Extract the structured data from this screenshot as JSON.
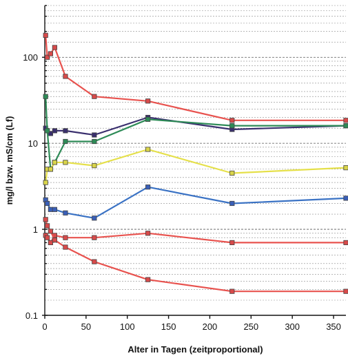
{
  "chart_data": {
    "type": "line",
    "xlabel": "Alter in Tagen (zeitproportional)",
    "ylabel": "mg/l bzw. mS/cm (Lf)",
    "xlim": [
      0,
      365
    ],
    "ylim": [
      0.1,
      400
    ],
    "yscale": "log",
    "grid": "horizontal, dashed",
    "x_ticks": [
      0,
      50,
      100,
      150,
      200,
      250,
      300,
      350
    ],
    "y_ticks": [
      0.1,
      1,
      10,
      100
    ],
    "y_tick_labels": [
      "0.1",
      "1",
      "10",
      "100"
    ],
    "series": [
      {
        "color": "#e8524e",
        "marker_color": "#d84a4a",
        "x": [
          1,
          3,
          7,
          12,
          25,
          60,
          125,
          227,
          365
        ],
        "y": [
          180,
          100,
          110,
          130,
          60,
          35,
          31,
          18.5,
          18.5
        ]
      },
      {
        "color": "#3a2f6e",
        "marker_color": "#3a2f6e",
        "x": [
          1,
          3,
          7,
          12,
          25,
          60,
          125,
          227,
          365
        ],
        "y": [
          15,
          14,
          13,
          14,
          14,
          12.5,
          20,
          14.5,
          16
        ]
      },
      {
        "color": "#2e8b57",
        "marker_color": "#2e8b57",
        "x": [
          1,
          3,
          7,
          12,
          25,
          60,
          125,
          227,
          365
        ],
        "y": [
          35,
          14,
          5,
          6,
          10.5,
          10.5,
          19,
          16,
          16
        ]
      },
      {
        "color": "#e5e04a",
        "marker_color": "#d9d44a",
        "x": [
          1,
          3,
          7,
          12,
          25,
          60,
          125,
          227,
          365
        ],
        "y": [
          3.5,
          5,
          5,
          6,
          6,
          5.5,
          8.5,
          4.5,
          5.2
        ]
      },
      {
        "color": "#3a72c4",
        "marker_color": "#3a5fb8",
        "x": [
          1,
          3,
          7,
          12,
          25,
          60,
          125,
          227,
          365
        ],
        "y": [
          2.2,
          2.0,
          1.7,
          1.7,
          1.55,
          1.35,
          3.1,
          2.0,
          2.3
        ]
      },
      {
        "color": "#e8524e",
        "marker_color": "#d84a4a",
        "x": [
          1,
          3,
          7,
          12,
          25,
          60,
          125,
          227,
          365
        ],
        "y": [
          0.85,
          0.8,
          0.7,
          0.85,
          0.8,
          0.8,
          0.9,
          0.7,
          0.7
        ]
      },
      {
        "color": "#e8524e",
        "marker_color": "#d84a4a",
        "x": [
          1,
          3,
          7,
          12,
          25,
          60,
          125,
          227,
          365
        ],
        "y": [
          1.3,
          1.1,
          0.95,
          0.75,
          0.62,
          0.42,
          0.26,
          0.19,
          0.19
        ]
      }
    ]
  }
}
